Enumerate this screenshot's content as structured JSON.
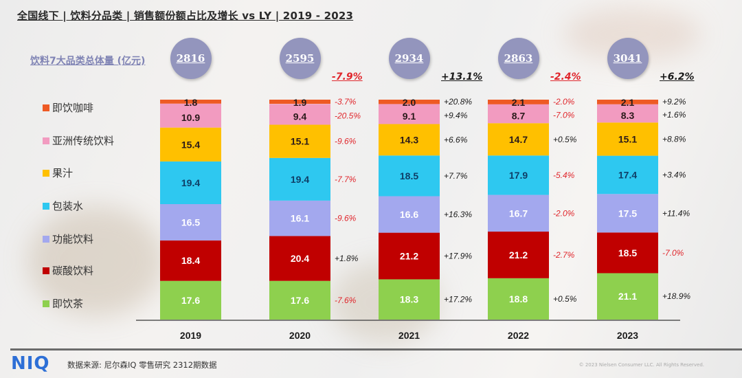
{
  "title": "全国线下 | 饮料分品类 | 销售额份额占比及增长 vs LY | 2019 - 2023",
  "total_label": "饮料7大品类总体量 (亿元)",
  "totals": [
    {
      "year": "2019",
      "value": "2816",
      "yoy": ""
    },
    {
      "year": "2020",
      "value": "2595",
      "yoy": "-7.9%"
    },
    {
      "year": "2021",
      "value": "2934",
      "yoy": "+13.1%"
    },
    {
      "year": "2022",
      "value": "2863",
      "yoy": "-2.4%"
    },
    {
      "year": "2023",
      "value": "3041",
      "yoy": "+6.2%"
    }
  ],
  "colors": {
    "coffee": "#ee5a24",
    "asian": "#f29bc0",
    "juice": "#ffc000",
    "water": "#2ec8f0",
    "functional": "#a3a8ee",
    "carbonated": "#c00000",
    "tea": "#8ed04e",
    "negative": "#e0262c",
    "positive": "#1a1a1a",
    "bubble": "#9395bd"
  },
  "legend": [
    {
      "label": "即饮咖啡",
      "key": "coffee"
    },
    {
      "label": "亚洲传统饮料",
      "key": "asian"
    },
    {
      "label": "果汁",
      "key": "juice"
    },
    {
      "label": "包装水",
      "key": "water"
    },
    {
      "label": "功能饮料",
      "key": "functional"
    },
    {
      "label": "碳酸饮料",
      "key": "carbonated"
    },
    {
      "label": "即饮茶",
      "key": "tea"
    }
  ],
  "chart_data": {
    "type": "bar",
    "stacked": true,
    "unit": "% share",
    "title": "全国线下 | 饮料分品类 | 销售额份额占比及增长 vs LY | 2019 - 2023",
    "categories": [
      "2019",
      "2020",
      "2021",
      "2022",
      "2023"
    ],
    "ylim": [
      0,
      100
    ],
    "grid": false,
    "legend_position": "left",
    "series": [
      {
        "name": "即饮茶",
        "key": "tea",
        "values": [
          17.6,
          17.6,
          18.3,
          18.8,
          21.1
        ],
        "growth": [
          "",
          "-7.6%",
          "+17.2%",
          "+0.5%",
          "+18.9%"
        ]
      },
      {
        "name": "碳酸饮料",
        "key": "carbonated",
        "values": [
          18.4,
          20.4,
          21.2,
          21.2,
          18.5
        ],
        "growth": [
          "",
          "+1.8%",
          "+17.9%",
          "-2.7%",
          "-7.0%"
        ]
      },
      {
        "name": "功能饮料",
        "key": "functional",
        "values": [
          16.5,
          16.1,
          16.6,
          16.7,
          17.5
        ],
        "growth": [
          "",
          "-9.6%",
          "+16.3%",
          "-2.0%",
          "+11.4%"
        ]
      },
      {
        "name": "包装水",
        "key": "water",
        "values": [
          19.4,
          19.4,
          18.5,
          17.9,
          17.4
        ],
        "growth": [
          "",
          "-7.7%",
          "+7.7%",
          "-5.4%",
          "+3.4%"
        ]
      },
      {
        "name": "果汁",
        "key": "juice",
        "values": [
          15.4,
          15.1,
          14.3,
          14.7,
          15.1
        ],
        "growth": [
          "",
          "-9.6%",
          "+6.6%",
          "+0.5%",
          "+8.8%"
        ]
      },
      {
        "name": "亚洲传统饮料",
        "key": "asian",
        "values": [
          10.9,
          9.4,
          9.1,
          8.7,
          8.3
        ],
        "growth": [
          "",
          "-20.5%",
          "+9.4%",
          "-7.0%",
          "+1.6%"
        ]
      },
      {
        "name": "即饮咖啡",
        "key": "coffee",
        "values": [
          1.8,
          1.9,
          2.0,
          2.1,
          2.1
        ],
        "growth": [
          "",
          "-3.7%",
          "+20.8%",
          "-2.0%",
          "+9.2%"
        ]
      }
    ]
  },
  "footer": {
    "logo": "NIQ",
    "source": "数据来源: 尼尔森IQ 零售研究 2312期数据",
    "copyright": "© 2023 Nielsen Consumer LLC. All Rights Reserved."
  }
}
